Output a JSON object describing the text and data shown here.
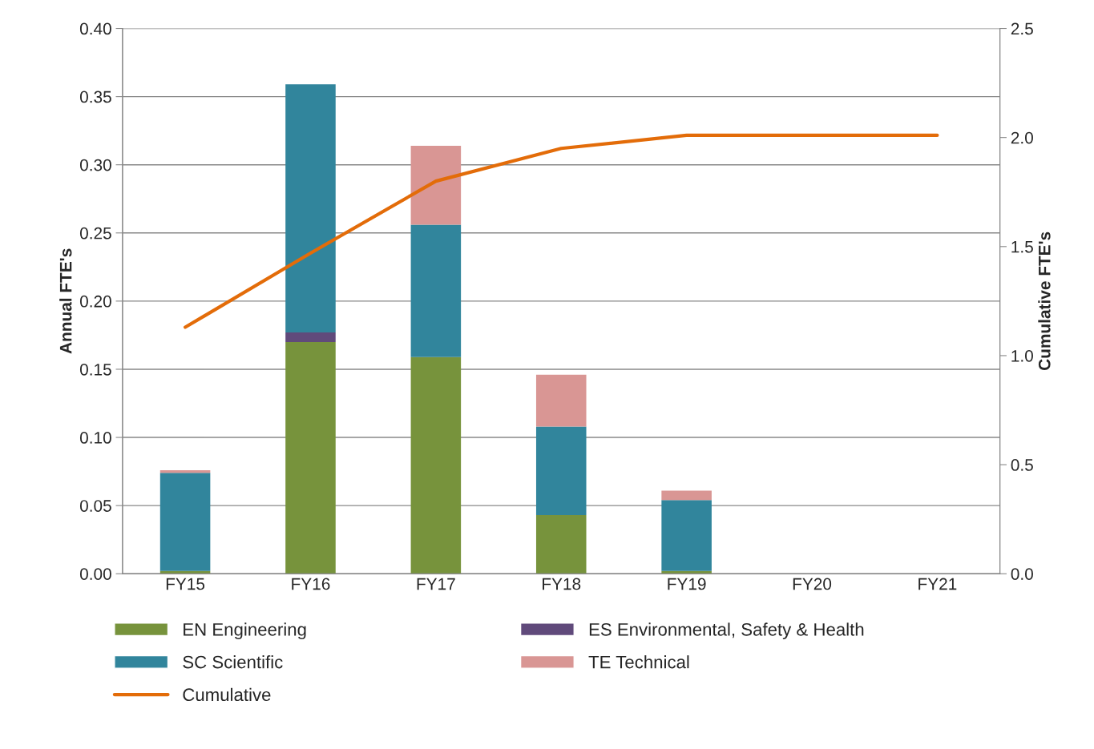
{
  "chart_data": {
    "type": "bar",
    "stacked": true,
    "ylabel": "Annual FTE's",
    "y2label": "Cumulative FTE's",
    "categories": [
      "FY15",
      "FY16",
      "FY17",
      "FY18",
      "FY19",
      "FY20",
      "FY21"
    ],
    "series": [
      {
        "name": "EN Engineering",
        "color": "#77933c",
        "values": [
          0.002,
          0.17,
          0.159,
          0.043,
          0.002,
          null,
          null
        ]
      },
      {
        "name": "ES Environmental, Safety & Health",
        "color": "#604a7b",
        "values": [
          null,
          0.007,
          null,
          null,
          null,
          null,
          null
        ]
      },
      {
        "name": "SC Scientific",
        "color": "#31859c",
        "values": [
          0.072,
          0.182,
          0.097,
          0.065,
          0.052,
          null,
          null
        ]
      },
      {
        "name": "TE Technical",
        "color": "#d99694",
        "values": [
          0.002,
          null,
          0.058,
          0.038,
          0.007,
          null,
          null
        ]
      },
      {
        "name": "Cumulative",
        "type": "line",
        "axis": "y2",
        "color": "#e36c09",
        "values": [
          1.13,
          1.47,
          1.8,
          1.95,
          2.01,
          2.01,
          2.01
        ]
      }
    ],
    "ylim": [
      0,
      0.4
    ],
    "yticks": [
      {
        "value": 0,
        "label": "0.00"
      },
      {
        "value": 0.05,
        "label": "0.05"
      },
      {
        "value": 0.1,
        "label": "0.10"
      },
      {
        "value": 0.15,
        "label": "0.15"
      },
      {
        "value": 0.2,
        "label": "0.20"
      },
      {
        "value": 0.25,
        "label": "0.25"
      },
      {
        "value": 0.3,
        "label": "0.30"
      },
      {
        "value": 0.35,
        "label": "0.35"
      },
      {
        "value": 0.4,
        "label": "0.40"
      }
    ],
    "y2lim": [
      0,
      2.5
    ],
    "y2ticks": [
      {
        "value": 0,
        "label": "0.0"
      },
      {
        "value": 0.5,
        "label": "0.5"
      },
      {
        "value": 1,
        "label": "1.0"
      },
      {
        "value": 1.5,
        "label": "1.5"
      },
      {
        "value": 2,
        "label": "2.0"
      },
      {
        "value": 2.5,
        "label": "2.5"
      }
    ],
    "grid": "y",
    "legend": "bottom"
  }
}
